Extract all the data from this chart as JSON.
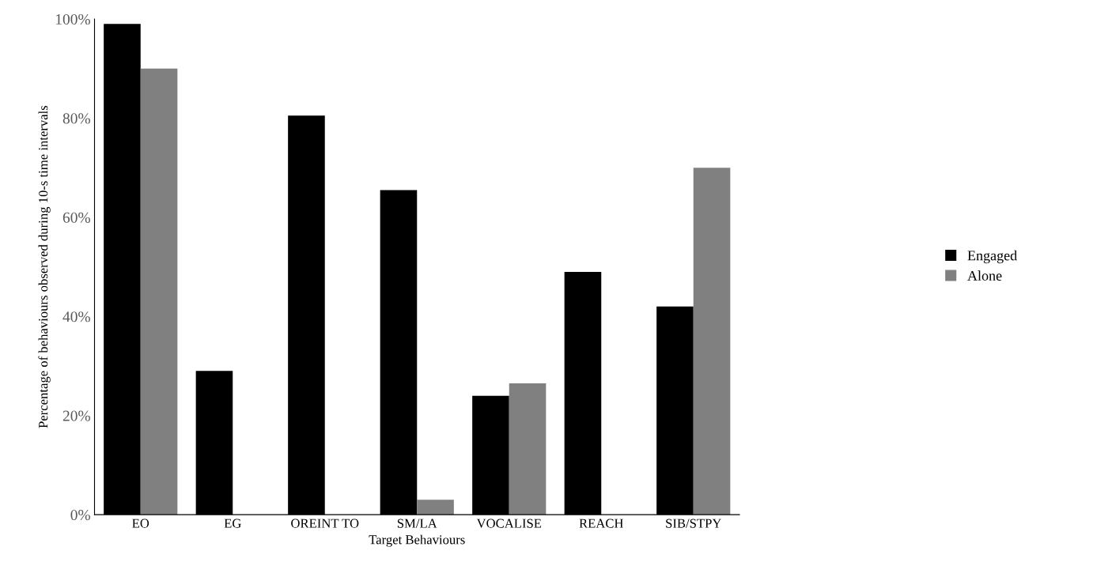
{
  "chart_data": {
    "type": "bar",
    "xlabel": "Target Behaviours",
    "ylabel": "Percentage of behaviours observed during 10-s time intervals",
    "categories": [
      "EO",
      "EG",
      "OREINT TO",
      "SM/LA",
      "VOCALISE",
      "REACH",
      "SIB/STPY"
    ],
    "series": [
      {
        "name": "Engaged",
        "color": "#000000",
        "values": [
          99,
          29,
          80.5,
          65.5,
          24,
          49,
          42
        ]
      },
      {
        "name": "Alone",
        "color": "#808080",
        "values": [
          90,
          0,
          0,
          3,
          26.5,
          0,
          70
        ]
      }
    ],
    "ylim": [
      0,
      100
    ],
    "yticks": [
      {
        "value": 0,
        "label": "0%"
      },
      {
        "value": 20,
        "label": "20%"
      },
      {
        "value": 40,
        "label": "40%"
      },
      {
        "value": 60,
        "label": "60%"
      },
      {
        "value": 80,
        "label": "80%"
      },
      {
        "value": 100,
        "label": "100%"
      }
    ],
    "grid": false,
    "legend": "right"
  }
}
